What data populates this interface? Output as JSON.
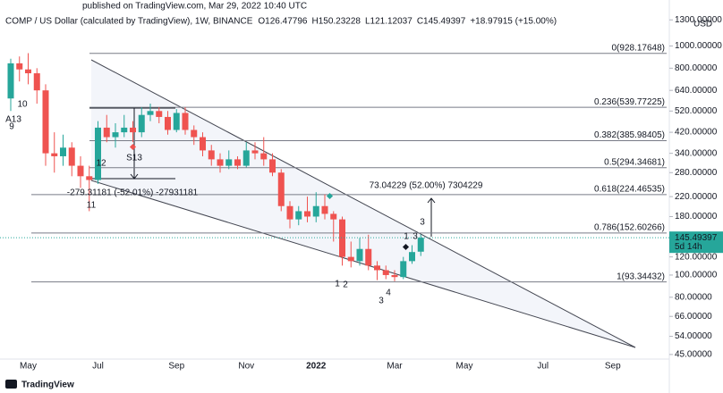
{
  "chart_data": {
    "type": "candlestick",
    "published": "published on TradingView.com, Mar 29, 2022 10:40 UTC",
    "title": "COMP / US Dollar (calculated by TradingView), 1W, BINANCE",
    "ohlc_legend": [
      "O126.47796",
      "H150.23228",
      "L121.12037",
      "C145.49397",
      "+18.97915 (+15.00%)"
    ],
    "currency": "USD",
    "last_price_label": "145.49397",
    "countdown": "5d 14h",
    "footer": "TradingView",
    "up_color": "#26a69a",
    "down_color": "#ef5350",
    "log_scale": true,
    "categories": [
      null,
      null,
      "May",
      null,
      null,
      null,
      null,
      null,
      null,
      null,
      "Jul",
      null,
      null,
      null,
      null,
      null,
      null,
      null,
      null,
      "Sep",
      null,
      null,
      null,
      null,
      null,
      null,
      null,
      "Nov",
      null,
      null,
      null,
      null,
      null,
      null,
      null,
      "2022",
      null,
      null,
      null,
      null,
      null,
      null,
      null,
      null,
      "Mar",
      null,
      null,
      null,
      null,
      null,
      null,
      null,
      "May",
      null,
      null,
      null,
      null,
      null,
      null,
      null,
      null,
      "Jul",
      null,
      null,
      null,
      null,
      null,
      null,
      null,
      "Sep",
      null,
      null,
      null,
      null,
      null,
      null
    ],
    "open": [
      590,
      840,
      790,
      760,
      640,
      340,
      330,
      360,
      300,
      270,
      260,
      440,
      400,
      420,
      440,
      420,
      500,
      520,
      490,
      430,
      510,
      430,
      400,
      350,
      320,
      300,
      320,
      300,
      350,
      340,
      320,
      280,
      200,
      175,
      190,
      180,
      200,
      185,
      175,
      120,
      115,
      130,
      110,
      105,
      100,
      98,
      115,
      126.47796,
      null,
      null,
      null,
      null,
      null,
      null,
      null,
      null,
      null,
      null,
      null,
      null,
      null,
      null,
      null,
      null,
      null,
      null,
      null,
      null,
      null,
      null,
      null,
      null,
      null,
      null,
      null,
      null
    ],
    "high": [
      880,
      900,
      930,
      800,
      680,
      420,
      410,
      380,
      330,
      300,
      470,
      500,
      460,
      500,
      470,
      540,
      560,
      540,
      520,
      530,
      540,
      450,
      420,
      370,
      340,
      350,
      330,
      380,
      380,
      400,
      340,
      290,
      210,
      200,
      220,
      230,
      225,
      190,
      180,
      140,
      145,
      150,
      115,
      110,
      105,
      120,
      135,
      150.23228,
      null,
      null,
      null,
      null,
      null,
      null,
      null,
      null,
      null,
      null,
      null,
      null,
      null,
      null,
      null,
      null,
      null,
      null,
      null,
      null,
      null,
      null,
      null,
      null,
      null,
      null,
      null,
      null
    ],
    "low": [
      520,
      700,
      680,
      560,
      300,
      280,
      300,
      270,
      240,
      190,
      250,
      380,
      360,
      400,
      380,
      400,
      470,
      460,
      410,
      420,
      410,
      370,
      330,
      300,
      280,
      290,
      290,
      295,
      320,
      300,
      270,
      190,
      160,
      165,
      170,
      170,
      175,
      140,
      110,
      108,
      110,
      105,
      95,
      96,
      94,
      96,
      112,
      121.12037,
      null,
      null,
      null,
      null,
      null,
      null,
      null,
      null,
      null,
      null,
      null,
      null,
      null,
      null,
      null,
      null,
      null,
      null,
      null,
      null,
      null,
      null,
      null,
      null,
      null,
      null,
      null,
      null
    ],
    "close": [
      840,
      790,
      760,
      640,
      340,
      330,
      360,
      300,
      270,
      260,
      440,
      400,
      420,
      440,
      420,
      500,
      520,
      490,
      430,
      510,
      430,
      400,
      350,
      320,
      300,
      320,
      300,
      350,
      340,
      320,
      280,
      200,
      175,
      190,
      180,
      200,
      185,
      175,
      120,
      115,
      130,
      110,
      105,
      100,
      98,
      115,
      126,
      145.49397,
      null,
      null,
      null,
      null,
      null,
      null,
      null,
      null,
      null,
      null,
      null,
      null,
      null,
      null,
      null,
      null,
      null,
      null,
      null,
      null,
      null,
      null,
      null,
      null,
      null,
      null,
      null,
      null
    ],
    "ylim": [
      40,
      1400
    ],
    "yticks": [
      {
        "value": 1300,
        "label": "1300.00000"
      },
      {
        "value": 1000,
        "label": "1000.00000"
      },
      {
        "value": 800,
        "label": "800.00000"
      },
      {
        "value": 640,
        "label": "640.00000"
      },
      {
        "value": 520,
        "label": "520.00000"
      },
      {
        "value": 420,
        "label": "420.00000"
      },
      {
        "value": 340,
        "label": "340.00000"
      },
      {
        "value": 280,
        "label": "280.00000"
      },
      {
        "value": 220,
        "label": "220.00000"
      },
      {
        "value": 180,
        "label": "180.00000"
      },
      {
        "value": 120,
        "label": "120.00000"
      },
      {
        "value": 100,
        "label": "100.00000"
      },
      {
        "value": 80,
        "label": "80.00000"
      },
      {
        "value": 66,
        "label": "66.00000"
      },
      {
        "value": 54,
        "label": "54.00000"
      },
      {
        "value": 45,
        "label": "45.00000"
      }
    ],
    "fib_levels": [
      {
        "value": 928.17648,
        "label": "0(928.17648)"
      },
      {
        "value": 539.77225,
        "label": "0.236(539.77225)"
      },
      {
        "value": 385.98405,
        "label": "0.382(385.98405)"
      },
      {
        "value": 294.34681,
        "label": "0.5(294.34681)"
      },
      {
        "value": 224.46535,
        "label": "0.618(224.46535)"
      },
      {
        "value": 152.60266,
        "label": "0.786(152.60266)"
      },
      {
        "value": 93.34432,
        "label": "1(93.34432)"
      }
    ],
    "measures": [
      "-279.31181 (-52.01%) -27931181",
      "73.04229 (52.00%) 7304229"
    ],
    "markers": [
      "A13",
      "9",
      "10",
      "12",
      "11",
      "S13",
      "1",
      "2",
      "3",
      "4",
      "3",
      "1",
      "3"
    ]
  }
}
